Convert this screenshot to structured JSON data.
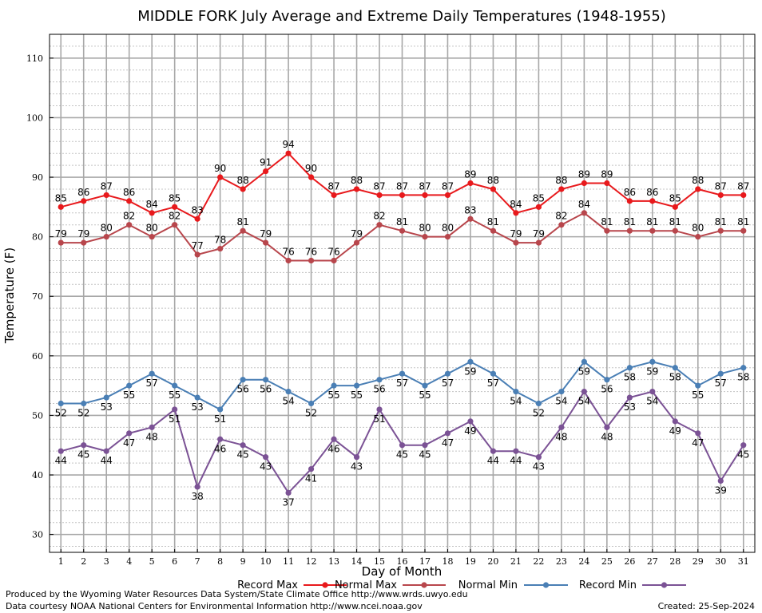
{
  "chart_data": {
    "type": "line",
    "title": "MIDDLE FORK July Average and Extreme Daily Temperatures (1948-1955)",
    "xlabel": "Day of Month",
    "ylabel": "Temperature (F)",
    "ylim": [
      27,
      114
    ],
    "xlim": [
      0.5,
      31.5
    ],
    "yticks": [
      30,
      40,
      50,
      60,
      70,
      80,
      90,
      100,
      110
    ],
    "x": [
      1,
      2,
      3,
      4,
      5,
      6,
      7,
      8,
      9,
      10,
      11,
      12,
      13,
      14,
      15,
      16,
      17,
      18,
      19,
      20,
      21,
      22,
      23,
      24,
      25,
      26,
      27,
      28,
      29,
      30,
      31
    ],
    "grid": true,
    "legend_position": "bottom",
    "series": [
      {
        "name": "Record Max",
        "color": "#e8191c",
        "label_pos": "above",
        "values": [
          85,
          86,
          87,
          86,
          84,
          85,
          83,
          90,
          88,
          91,
          94,
          90,
          87,
          88,
          87,
          87,
          87,
          87,
          89,
          88,
          84,
          85,
          88,
          89,
          89,
          86,
          86,
          85,
          88,
          87,
          87
        ]
      },
      {
        "name": "Normal Max",
        "color": "#b8464c",
        "label_pos": "above",
        "values": [
          79,
          79,
          80,
          82,
          80,
          82,
          77,
          78,
          81,
          79,
          76,
          76,
          76,
          79,
          82,
          81,
          80,
          80,
          83,
          81,
          79,
          79,
          82,
          84,
          81,
          81,
          81,
          81,
          80,
          81,
          81
        ]
      },
      {
        "name": "Normal Min",
        "color": "#4a7fb5",
        "label_pos": "below",
        "values": [
          52,
          52,
          53,
          55,
          57,
          55,
          53,
          51,
          56,
          56,
          54,
          52,
          55,
          55,
          56,
          57,
          55,
          57,
          59,
          57,
          54,
          52,
          54,
          59,
          56,
          58,
          59,
          58,
          55,
          57,
          58
        ]
      },
      {
        "name": "Record Min",
        "color": "#7b5295",
        "label_pos": "below",
        "values": [
          44,
          45,
          44,
          47,
          48,
          51,
          38,
          46,
          45,
          43,
          37,
          41,
          46,
          43,
          51,
          45,
          45,
          47,
          49,
          44,
          44,
          43,
          48,
          54,
          48,
          53,
          54,
          49,
          47,
          39,
          45
        ]
      }
    ]
  },
  "footer": {
    "produced_by": "Produced by the Wyoming Water Resources Data System/State Climate Office http://www.wrds.uwyo.edu",
    "courtesy": "Data courtesy NOAA National Centers for Environmental Information http://www.ncei.noaa.gov",
    "created": "Created:  25-Sep-2024"
  }
}
